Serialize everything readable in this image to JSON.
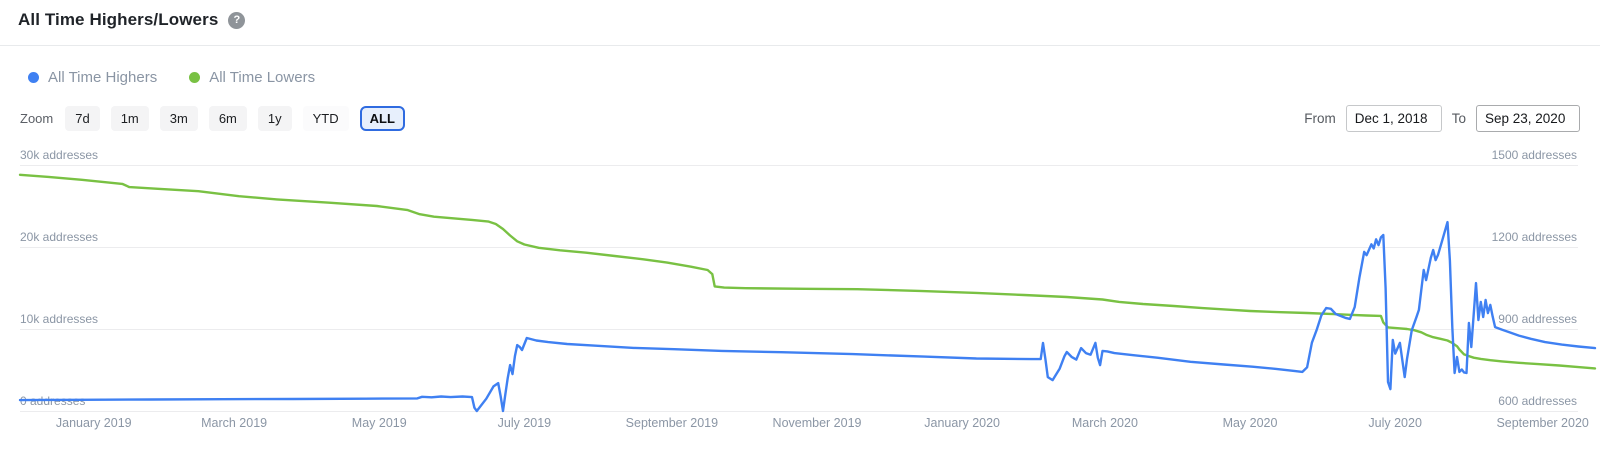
{
  "header": {
    "title": "All Time Highers/Lowers",
    "help_glyph": "?"
  },
  "legend": [
    {
      "label": "All Time Highers",
      "color": "#3f80f2"
    },
    {
      "label": "All Time Lowers",
      "color": "#79c143"
    }
  ],
  "controls": {
    "zoom_label": "Zoom",
    "buttons": [
      {
        "label": "7d",
        "selected": false
      },
      {
        "label": "1m",
        "selected": false
      },
      {
        "label": "3m",
        "selected": false
      },
      {
        "label": "6m",
        "selected": false
      },
      {
        "label": "1y",
        "selected": false
      },
      {
        "label": "YTD",
        "selected": false
      },
      {
        "label": "ALL",
        "selected": true
      }
    ],
    "from_label": "From",
    "from_value": "Dec 1, 2018",
    "to_label": "To",
    "to_value": "Sep 23, 2020"
  },
  "chart_data": {
    "type": "line",
    "x_range": [
      "2018-12-01",
      "2020-09-23"
    ],
    "x_unit": "days since 2018-12-01",
    "grid": true,
    "left_axis": {
      "ylim": [
        0,
        30000
      ],
      "labels": [
        "30k addresses",
        "20k addresses",
        "10k addresses",
        "0 addresses"
      ]
    },
    "right_axis": {
      "ylim": [
        600,
        1500
      ],
      "labels": [
        "1500 addresses",
        "1200 addresses",
        "900 addresses",
        "600 addresses"
      ]
    },
    "x_ticks": [
      {
        "date": "2019-01-01",
        "label": "January 2019"
      },
      {
        "date": "2019-03-01",
        "label": "March 2019"
      },
      {
        "date": "2019-05-01",
        "label": "May 2019"
      },
      {
        "date": "2019-07-01",
        "label": "July 2019"
      },
      {
        "date": "2019-09-01",
        "label": "September 2019"
      },
      {
        "date": "2019-11-01",
        "label": "November 2019"
      },
      {
        "date": "2020-01-01",
        "label": "January 2020"
      },
      {
        "date": "2020-03-01",
        "label": "March 2020"
      },
      {
        "date": "2020-05-01",
        "label": "May 2020"
      },
      {
        "date": "2020-07-01",
        "label": "July 2020"
      },
      {
        "date": "2020-09-01",
        "label": "September 2020"
      }
    ],
    "series": [
      {
        "name": "All Time Highers",
        "axis": "right",
        "color": "#3f80f2",
        "points": [
          [
            0,
            640
          ],
          [
            25,
            641
          ],
          [
            55,
            642
          ],
          [
            85,
            643
          ],
          [
            115,
            644
          ],
          [
            145,
            645
          ],
          [
            167,
            646
          ],
          [
            169,
            652
          ],
          [
            173,
            650
          ],
          [
            177,
            653
          ],
          [
            181,
            651
          ],
          [
            186,
            653
          ],
          [
            190,
            651
          ],
          [
            191,
            612
          ],
          [
            192,
            600
          ],
          [
            196,
            645
          ],
          [
            199,
            690
          ],
          [
            201,
            702
          ],
          [
            202,
            655
          ],
          [
            203,
            600
          ],
          [
            204,
            660
          ],
          [
            205,
            720
          ],
          [
            206,
            768
          ],
          [
            207,
            735
          ],
          [
            208,
            800
          ],
          [
            209,
            841
          ],
          [
            210,
            835
          ],
          [
            211,
            823
          ],
          [
            213,
            867
          ],
          [
            217,
            858
          ],
          [
            222,
            852
          ],
          [
            230,
            845
          ],
          [
            242,
            839
          ],
          [
            258,
            831
          ],
          [
            275,
            826
          ],
          [
            295,
            820
          ],
          [
            320,
            815
          ],
          [
            350,
            808
          ],
          [
            380,
            799
          ],
          [
            402,
            792
          ],
          [
            425,
            790
          ],
          [
            429,
            790
          ],
          [
            430,
            849
          ],
          [
            431,
            790
          ],
          [
            432,
            724
          ],
          [
            434,
            713
          ],
          [
            437,
            755
          ],
          [
            439,
            800
          ],
          [
            440,
            816
          ],
          [
            442,
            798
          ],
          [
            444,
            788
          ],
          [
            446,
            830
          ],
          [
            448,
            812
          ],
          [
            450,
            806
          ],
          [
            452,
            849
          ],
          [
            453,
            795
          ],
          [
            454,
            768
          ],
          [
            455,
            820
          ],
          [
            457,
            818
          ],
          [
            460,
            812
          ],
          [
            468,
            804
          ],
          [
            478,
            795
          ],
          [
            492,
            780
          ],
          [
            506,
            770
          ],
          [
            518,
            762
          ],
          [
            528,
            754
          ],
          [
            536,
            746
          ],
          [
            539,
            743
          ],
          [
            541,
            760
          ],
          [
            543,
            850
          ],
          [
            545,
            896
          ],
          [
            547,
            950
          ],
          [
            549,
            977
          ],
          [
            551,
            974
          ],
          [
            553,
            955
          ],
          [
            555,
            948
          ],
          [
            557,
            941
          ],
          [
            559,
            937
          ],
          [
            561,
            980
          ],
          [
            563,
            1090
          ],
          [
            565,
            1182
          ],
          [
            566,
            1170
          ],
          [
            568,
            1210
          ],
          [
            569,
            1195
          ],
          [
            570,
            1228
          ],
          [
            571,
            1207
          ],
          [
            572,
            1235
          ],
          [
            573,
            1244
          ],
          [
            574,
            1050
          ],
          [
            575,
            706
          ],
          [
            576,
            680
          ],
          [
            577,
            860
          ],
          [
            578,
            810
          ],
          [
            580,
            849
          ],
          [
            582,
            724
          ],
          [
            583,
            790
          ],
          [
            585,
            896
          ],
          [
            587,
            945
          ],
          [
            588,
            970
          ],
          [
            590,
            1116
          ],
          [
            591,
            1079
          ],
          [
            593,
            1160
          ],
          [
            594,
            1189
          ],
          [
            595,
            1152
          ],
          [
            596,
            1171
          ],
          [
            598,
            1230
          ],
          [
            600,
            1291
          ],
          [
            601,
            1150
          ],
          [
            602,
            907
          ],
          [
            603,
            739
          ],
          [
            604,
            798
          ],
          [
            605,
            743
          ],
          [
            606,
            752
          ],
          [
            607,
            741
          ],
          [
            608,
            739
          ],
          [
            609,
            922
          ],
          [
            610,
            834
          ],
          [
            612,
            1068
          ],
          [
            613,
            933
          ],
          [
            614,
            999
          ],
          [
            615,
            944
          ],
          [
            616,
            1006
          ],
          [
            617,
            958
          ],
          [
            618,
            988
          ],
          [
            619,
            945
          ],
          [
            620,
            907
          ],
          [
            623,
            897
          ],
          [
            626,
            888
          ],
          [
            630,
            876
          ],
          [
            635,
            864
          ],
          [
            641,
            852
          ],
          [
            648,
            843
          ],
          [
            655,
            836
          ],
          [
            662,
            830
          ]
        ]
      },
      {
        "name": "All Time Lowers",
        "axis": "left",
        "color": "#79c143",
        "points": [
          [
            0,
            28800
          ],
          [
            12,
            28550
          ],
          [
            26,
            28200
          ],
          [
            43,
            27700
          ],
          [
            46,
            27300
          ],
          [
            58,
            27100
          ],
          [
            75,
            26800
          ],
          [
            92,
            26200
          ],
          [
            108,
            25800
          ],
          [
            130,
            25400
          ],
          [
            150,
            25000
          ],
          [
            163,
            24500
          ],
          [
            168,
            24000
          ],
          [
            174,
            23700
          ],
          [
            182,
            23500
          ],
          [
            190,
            23300
          ],
          [
            197,
            23100
          ],
          [
            200,
            22800
          ],
          [
            203,
            22200
          ],
          [
            206,
            21400
          ],
          [
            209,
            20700
          ],
          [
            212,
            20300
          ],
          [
            218,
            19900
          ],
          [
            227,
            19600
          ],
          [
            238,
            19300
          ],
          [
            250,
            18900
          ],
          [
            262,
            18500
          ],
          [
            272,
            18100
          ],
          [
            282,
            17600
          ],
          [
            289,
            17200
          ],
          [
            291,
            16700
          ],
          [
            292,
            15200
          ],
          [
            296,
            15050
          ],
          [
            305,
            14980
          ],
          [
            330,
            14900
          ],
          [
            352,
            14850
          ],
          [
            378,
            14650
          ],
          [
            402,
            14400
          ],
          [
            422,
            14150
          ],
          [
            440,
            13900
          ],
          [
            455,
            13600
          ],
          [
            462,
            13300
          ],
          [
            472,
            13050
          ],
          [
            485,
            12800
          ],
          [
            497,
            12550
          ],
          [
            508,
            12350
          ],
          [
            517,
            12200
          ],
          [
            530,
            12050
          ],
          [
            541,
            11950
          ],
          [
            552,
            11820
          ],
          [
            560,
            11720
          ],
          [
            566,
            11650
          ],
          [
            572,
            11600
          ],
          [
            573,
            10800
          ],
          [
            575,
            10200
          ],
          [
            579,
            10100
          ],
          [
            583,
            10000
          ],
          [
            586,
            9850
          ],
          [
            589,
            9600
          ],
          [
            591,
            9300
          ],
          [
            594,
            9000
          ],
          [
            597,
            8800
          ],
          [
            600,
            8600
          ],
          [
            602,
            8300
          ],
          [
            603,
            8100
          ],
          [
            604,
            7900
          ],
          [
            605,
            7500
          ],
          [
            607,
            6900
          ],
          [
            609,
            6700
          ],
          [
            611,
            6500
          ],
          [
            614,
            6350
          ],
          [
            618,
            6200
          ],
          [
            623,
            6050
          ],
          [
            630,
            5880
          ],
          [
            638,
            5720
          ],
          [
            647,
            5550
          ],
          [
            655,
            5350
          ],
          [
            662,
            5200
          ]
        ]
      }
    ]
  }
}
